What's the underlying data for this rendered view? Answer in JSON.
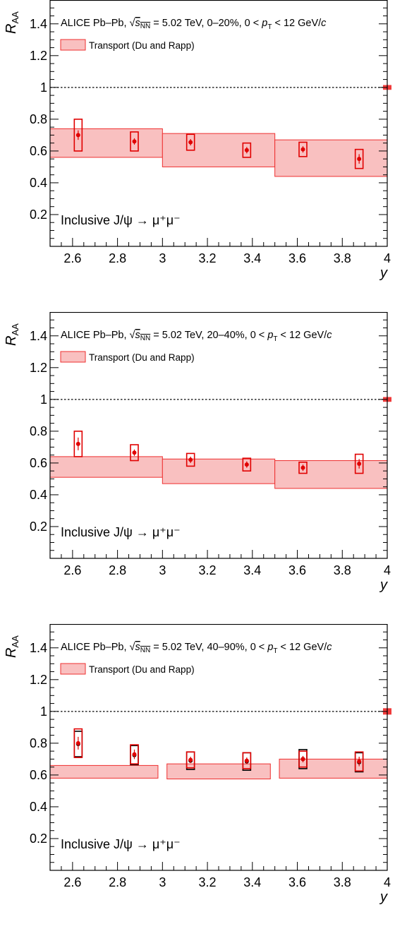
{
  "colors": {
    "model_fill": "#f9c0c0",
    "model_edge": "#ee3030",
    "data": "#e00000",
    "ref_line": "#000000"
  },
  "chart_data": [
    {
      "type": "scatter",
      "title": "ALICE Pb–Pb, √s_NN = 5.02 TeV, 0–20%, 0 < p_T < 12 GeV/c",
      "header_parts": {
        "prefix": "ALICE Pb–Pb, ",
        "sqrt_sym": "√",
        "s": "s",
        "nn": "NN",
        "energy": " = 5.02 TeV, ",
        "centrality": "0–20%",
        "pt_a": ", 0 < ",
        "p": "p",
        "T": "T",
        "pt_b": " < 12 GeV/",
        "c": "c"
      },
      "annotation": "Inclusive J/ψ → μ⁺μ⁻",
      "xlabel": "y",
      "ylabel_main": "R",
      "ylabel_sub": "AA",
      "xlim": [
        2.5,
        4.0
      ],
      "ylim": [
        0.0,
        1.55
      ],
      "xticks": [
        2.6,
        2.8,
        3.0,
        3.2,
        3.4,
        3.6,
        3.8,
        4.0
      ],
      "xtick_labels": [
        "2.6",
        "2.8",
        "3",
        "3.2",
        "3.4",
        "3.6",
        "3.8",
        "4"
      ],
      "yticks": [
        0.2,
        0.4,
        0.6,
        0.8,
        1.0,
        1.2,
        1.4
      ],
      "ytick_labels": [
        "0.2",
        "0.4",
        "0.6",
        "0.8",
        "1",
        "1.2",
        "1.4"
      ],
      "reference_line": 1.0,
      "global_uncertainty": [
        0.985,
        1.015
      ],
      "legend": {
        "label": "Transport (Du and Rapp)",
        "position": "top-left"
      },
      "model": [
        {
          "x": [
            2.5,
            3.0
          ],
          "low": 0.56,
          "high": 0.74
        },
        {
          "x": [
            3.0,
            3.5
          ],
          "low": 0.5,
          "high": 0.71
        },
        {
          "x": [
            3.5,
            4.0
          ],
          "low": 0.44,
          "high": 0.67
        }
      ],
      "points": [
        {
          "x": 2.625,
          "y": 0.7,
          "stat": 0.03,
          "syst": 0.1
        },
        {
          "x": 2.875,
          "y": 0.66,
          "stat": 0.02,
          "syst": 0.06
        },
        {
          "x": 3.125,
          "y": 0.655,
          "stat": 0.02,
          "syst": 0.05
        },
        {
          "x": 3.375,
          "y": 0.605,
          "stat": 0.02,
          "syst": 0.045
        },
        {
          "x": 3.625,
          "y": 0.61,
          "stat": 0.02,
          "syst": 0.045
        },
        {
          "x": 3.875,
          "y": 0.55,
          "stat": 0.03,
          "syst": 0.06
        }
      ],
      "ref_points": []
    },
    {
      "type": "scatter",
      "title": "ALICE Pb–Pb, √s_NN = 5.02 TeV, 20–40%, 0 < p_T < 12 GeV/c",
      "header_parts": {
        "prefix": "ALICE Pb–Pb, ",
        "sqrt_sym": "√",
        "s": "s",
        "nn": "NN",
        "energy": " = 5.02 TeV, ",
        "centrality": "20–40%",
        "pt_a": ", 0 < ",
        "p": "p",
        "T": "T",
        "pt_b": " < 12 GeV/",
        "c": "c"
      },
      "annotation": "Inclusive J/ψ → μ⁺μ⁻",
      "xlabel": "y",
      "ylabel_main": "R",
      "ylabel_sub": "AA",
      "xlim": [
        2.5,
        4.0
      ],
      "ylim": [
        0.0,
        1.55
      ],
      "xticks": [
        2.6,
        2.8,
        3.0,
        3.2,
        3.4,
        3.6,
        3.8,
        4.0
      ],
      "xtick_labels": [
        "2.6",
        "2.8",
        "3",
        "3.2",
        "3.4",
        "3.6",
        "3.8",
        "4"
      ],
      "yticks": [
        0.2,
        0.4,
        0.6,
        0.8,
        1.0,
        1.2,
        1.4
      ],
      "ytick_labels": [
        "0.2",
        "0.4",
        "0.6",
        "0.8",
        "1",
        "1.2",
        "1.4"
      ],
      "reference_line": 1.0,
      "global_uncertainty": [
        0.985,
        1.015
      ],
      "legend": {
        "label": "Transport (Du and Rapp)",
        "position": "top-left"
      },
      "model": [
        {
          "x": [
            2.5,
            3.0
          ],
          "low": 0.51,
          "high": 0.64
        },
        {
          "x": [
            3.0,
            3.5
          ],
          "low": 0.47,
          "high": 0.625
        },
        {
          "x": [
            3.5,
            4.0
          ],
          "low": 0.44,
          "high": 0.615
        }
      ],
      "points": [
        {
          "x": 2.625,
          "y": 0.72,
          "stat": 0.04,
          "syst": 0.08
        },
        {
          "x": 2.875,
          "y": 0.665,
          "stat": 0.02,
          "syst": 0.05
        },
        {
          "x": 3.125,
          "y": 0.62,
          "stat": 0.02,
          "syst": 0.04
        },
        {
          "x": 3.375,
          "y": 0.59,
          "stat": 0.02,
          "syst": 0.04
        },
        {
          "x": 3.625,
          "y": 0.57,
          "stat": 0.02,
          "syst": 0.035
        },
        {
          "x": 3.875,
          "y": 0.595,
          "stat": 0.03,
          "syst": 0.06
        }
      ],
      "ref_points": []
    },
    {
      "type": "scatter",
      "title": "ALICE Pb–Pb, √s_NN = 5.02 TeV, 40–90%, 0 < p_T < 12 GeV/c",
      "header_parts": {
        "prefix": "ALICE Pb–Pb, ",
        "sqrt_sym": "√",
        "s": "s",
        "nn": "NN",
        "energy": " = 5.02 TeV, ",
        "centrality": "40–90%",
        "pt_a": ", 0 < ",
        "p": "p",
        "T": "T",
        "pt_b": " < 12 GeV/",
        "c": "c"
      },
      "annotation": "Inclusive J/ψ → μ⁺μ⁻",
      "xlabel": "y",
      "ylabel_main": "R",
      "ylabel_sub": "AA",
      "xlim": [
        2.5,
        4.0
      ],
      "ylim": [
        0.0,
        1.55
      ],
      "xticks": [
        2.6,
        2.8,
        3.0,
        3.2,
        3.4,
        3.6,
        3.8,
        4.0
      ],
      "xtick_labels": [
        "2.6",
        "2.8",
        "3",
        "3.2",
        "3.4",
        "3.6",
        "3.8",
        "4"
      ],
      "yticks": [
        0.2,
        0.4,
        0.6,
        0.8,
        1.0,
        1.2,
        1.4
      ],
      "ytick_labels": [
        "0.2",
        "0.4",
        "0.6",
        "0.8",
        "1",
        "1.2",
        "1.4"
      ],
      "reference_line": 1.0,
      "global_uncertainty": [
        0.98,
        1.02
      ],
      "legend": {
        "label": "Transport (Du and Rapp)",
        "position": "top-left"
      },
      "model": [
        {
          "x": [
            2.5,
            2.98
          ],
          "low": 0.58,
          "high": 0.66
        },
        {
          "x": [
            3.02,
            3.48
          ],
          "low": 0.575,
          "high": 0.67
        },
        {
          "x": [
            3.52,
            4.0
          ],
          "low": 0.58,
          "high": 0.7
        }
      ],
      "points": [
        {
          "x": 2.625,
          "y": 0.8,
          "stat": 0.04,
          "syst": 0.09
        },
        {
          "x": 2.875,
          "y": 0.73,
          "stat": 0.03,
          "syst": 0.06
        },
        {
          "x": 3.125,
          "y": 0.695,
          "stat": 0.02,
          "syst": 0.05
        },
        {
          "x": 3.375,
          "y": 0.69,
          "stat": 0.02,
          "syst": 0.05
        },
        {
          "x": 3.625,
          "y": 0.7,
          "stat": 0.02,
          "syst": 0.05
        },
        {
          "x": 3.875,
          "y": 0.685,
          "stat": 0.03,
          "syst": 0.06
        }
      ],
      "ref_points": [
        {
          "x": 2.625,
          "y": 0.795,
          "syst": 0.08
        },
        {
          "x": 2.875,
          "y": 0.725,
          "syst": 0.06
        },
        {
          "x": 3.125,
          "y": 0.69,
          "syst": 0.055
        },
        {
          "x": 3.375,
          "y": 0.685,
          "syst": 0.055
        },
        {
          "x": 3.625,
          "y": 0.7,
          "syst": 0.06
        },
        {
          "x": 3.875,
          "y": 0.68,
          "syst": 0.06
        }
      ]
    }
  ]
}
